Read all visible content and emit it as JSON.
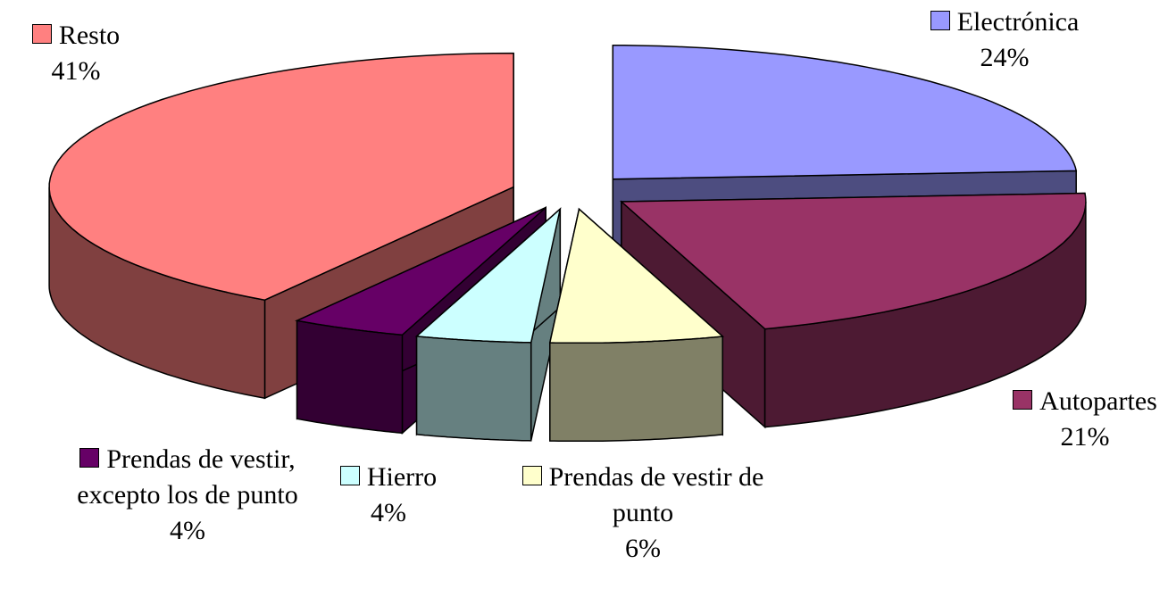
{
  "chart_data": {
    "type": "pie3d",
    "categories": [
      "Electrónica",
      "Autopartes",
      "Prendas de vestir de punto",
      "Hierro",
      "Prendas de vestir, excepto los de punto",
      "Resto"
    ],
    "values": [
      24,
      21,
      6,
      4,
      4,
      41
    ],
    "value_labels": [
      "24%",
      "21%",
      "6%",
      "4%",
      "4%",
      "41%"
    ],
    "colors": [
      "#9999ff",
      "#993366",
      "#ffffcc",
      "#ccffff",
      "#660066",
      "#ff8080"
    ],
    "side_colors": [
      "#4d4d80",
      "#4d1a33",
      "#808066",
      "#668080",
      "#330033",
      "#804040"
    ]
  }
}
